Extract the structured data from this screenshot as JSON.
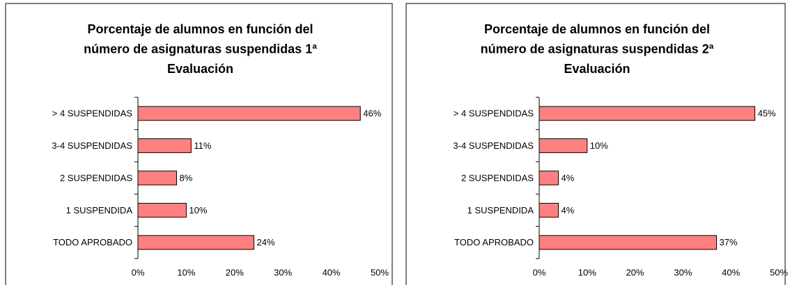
{
  "chart_data": [
    {
      "type": "bar",
      "orientation": "horizontal",
      "title": [
        "Porcentaje de alumnos en función del",
        "número de asignaturas suspendidas 1ª",
        "Evaluación"
      ],
      "categories": [
        "> 4 SUSPENDIDAS",
        "3-4 SUSPENDIDAS",
        "2 SUSPENDIDAS",
        "1 SUSPENDIDA",
        "TODO APROBADO"
      ],
      "values": [
        46,
        11,
        8,
        10,
        24
      ],
      "value_labels": [
        "46%",
        "11%",
        "8%",
        "10%",
        "24%"
      ],
      "color": "#ff8080",
      "xlim": [
        0,
        50
      ],
      "xticks": [
        {
          "value": 0,
          "label": "0%"
        },
        {
          "value": 10,
          "label": "10%"
        },
        {
          "value": 20,
          "label": "20%"
        },
        {
          "value": 30,
          "label": "30%"
        },
        {
          "value": 40,
          "label": "40%"
        },
        {
          "value": 50,
          "label": "50%"
        }
      ]
    },
    {
      "type": "bar",
      "orientation": "horizontal",
      "title": [
        "Porcentaje de alumnos en función del",
        "número de asignaturas suspendidas 2ª",
        "Evaluación"
      ],
      "categories": [
        "> 4 SUSPENDIDAS",
        "3-4 SUSPENDIDAS",
        "2 SUSPENDIDAS",
        "1 SUSPENDIDA",
        "TODO APROBADO"
      ],
      "values": [
        45,
        10,
        4,
        4,
        37
      ],
      "value_labels": [
        "45%",
        "10%",
        "4%",
        "4%",
        "37%"
      ],
      "color": "#ff8080",
      "xlim": [
        0,
        50
      ],
      "xticks": [
        {
          "value": 0,
          "label": "0%"
        },
        {
          "value": 10,
          "label": "10%"
        },
        {
          "value": 20,
          "label": "20%"
        },
        {
          "value": 30,
          "label": "30%"
        },
        {
          "value": 40,
          "label": "40%"
        },
        {
          "value": 50,
          "label": "50%"
        }
      ]
    }
  ]
}
